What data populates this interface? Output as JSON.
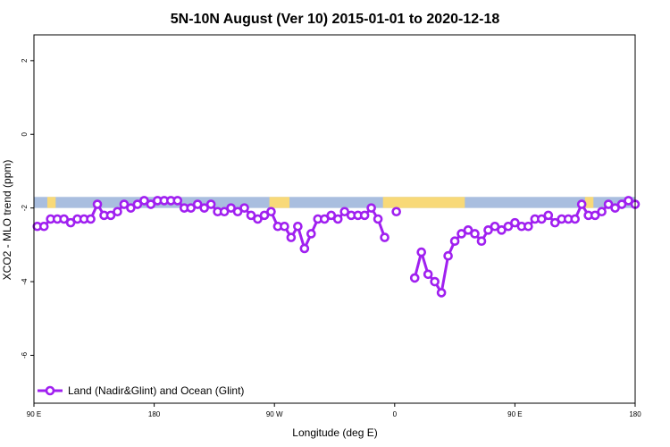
{
  "chart_data": {
    "type": "line",
    "title": "5N-10N August (Ver 10)   2015-01-01 to 2020-12-18",
    "xlabel": "Longitude (deg E)",
    "ylabel": "XCO2 - MLO trend (ppm)",
    "xlim": [
      90,
      450
    ],
    "ylim": [
      -7.3,
      2.7
    ],
    "x_ticks": [
      {
        "value": 90,
        "label": "90 E"
      },
      {
        "value": 162,
        "label": "180"
      },
      {
        "value": 234,
        "label": "90 W"
      },
      {
        "value": 306,
        "label": "0"
      },
      {
        "value": 378,
        "label": "90 E"
      },
      {
        "value": 450,
        "label": "180"
      }
    ],
    "y_ticks": [
      {
        "value": 2,
        "label": "2"
      },
      {
        "value": 0,
        "label": "0"
      },
      {
        "value": -2,
        "label": "-2"
      },
      {
        "value": -4,
        "label": "-4"
      },
      {
        "value": -6,
        "label": "-6"
      }
    ],
    "grid": false,
    "legend": {
      "placement": "bottom-left"
    },
    "land_mask": {
      "y_range": [
        -2.0,
        -1.7
      ],
      "ocean_color": "#a9bedf",
      "land_color": "#f8d978",
      "land_spans": [
        [
          98,
          103
        ],
        [
          231,
          243
        ],
        [
          299,
          348
        ],
        [
          420,
          425
        ]
      ]
    },
    "series": [
      {
        "name": "Land (Nadir&Glint) and Ocean (Glint)",
        "color": "#a020f0",
        "segments": [
          [
            [
              92,
              -2.5
            ],
            [
              96,
              -2.5
            ],
            [
              100,
              -2.3
            ],
            [
              104,
              -2.3
            ],
            [
              108,
              -2.3
            ],
            [
              112,
              -2.4
            ],
            [
              116,
              -2.3
            ],
            [
              120,
              -2.3
            ],
            [
              124,
              -2.3
            ],
            [
              128,
              -1.9
            ],
            [
              132,
              -2.2
            ],
            [
              136,
              -2.2
            ],
            [
              140,
              -2.1
            ],
            [
              144,
              -1.9
            ],
            [
              148,
              -2.0
            ],
            [
              152,
              -1.9
            ],
            [
              156,
              -1.8
            ],
            [
              160,
              -1.9
            ],
            [
              164,
              -1.8
            ],
            [
              168,
              -1.8
            ],
            [
              172,
              -1.8
            ],
            [
              176,
              -1.8
            ],
            [
              180,
              -2.0
            ],
            [
              184,
              -2.0
            ],
            [
              188,
              -1.9
            ],
            [
              192,
              -2.0
            ],
            [
              196,
              -1.9
            ],
            [
              200,
              -2.1
            ],
            [
              204,
              -2.1
            ],
            [
              208,
              -2.0
            ],
            [
              212,
              -2.1
            ],
            [
              216,
              -2.0
            ],
            [
              220,
              -2.2
            ],
            [
              224,
              -2.3
            ],
            [
              228,
              -2.2
            ],
            [
              232,
              -2.1
            ],
            [
              236,
              -2.5
            ],
            [
              240,
              -2.5
            ],
            [
              244,
              -2.8
            ],
            [
              248,
              -2.5
            ],
            [
              252,
              -3.1
            ],
            [
              256,
              -2.7
            ],
            [
              260,
              -2.3
            ],
            [
              264,
              -2.3
            ],
            [
              268,
              -2.2
            ],
            [
              272,
              -2.3
            ],
            [
              276,
              -2.1
            ],
            [
              280,
              -2.2
            ],
            [
              284,
              -2.2
            ],
            [
              288,
              -2.2
            ],
            [
              292,
              -2.0
            ],
            [
              296,
              -2.3
            ],
            [
              300,
              -2.8
            ]
          ],
          [
            [
              307,
              -2.1
            ]
          ],
          [
            [
              318,
              -3.9
            ],
            [
              322,
              -3.2
            ],
            [
              326,
              -3.8
            ],
            [
              330,
              -4.0
            ],
            [
              334,
              -4.3
            ],
            [
              338,
              -3.3
            ],
            [
              342,
              -2.9
            ],
            [
              346,
              -2.7
            ],
            [
              350,
              -2.6
            ],
            [
              354,
              -2.7
            ],
            [
              358,
              -2.9
            ],
            [
              362,
              -2.6
            ],
            [
              366,
              -2.5
            ],
            [
              370,
              -2.6
            ],
            [
              374,
              -2.5
            ],
            [
              378,
              -2.4
            ],
            [
              382,
              -2.5
            ],
            [
              386,
              -2.5
            ],
            [
              390,
              -2.3
            ],
            [
              394,
              -2.3
            ],
            [
              398,
              -2.2
            ],
            [
              402,
              -2.4
            ],
            [
              406,
              -2.3
            ],
            [
              410,
              -2.3
            ],
            [
              414,
              -2.3
            ],
            [
              418,
              -1.9
            ],
            [
              422,
              -2.2
            ],
            [
              426,
              -2.2
            ],
            [
              430,
              -2.1
            ],
            [
              434,
              -1.9
            ],
            [
              438,
              -2.0
            ],
            [
              442,
              -1.9
            ],
            [
              446,
              -1.8
            ],
            [
              450,
              -1.9
            ]
          ]
        ]
      }
    ]
  }
}
